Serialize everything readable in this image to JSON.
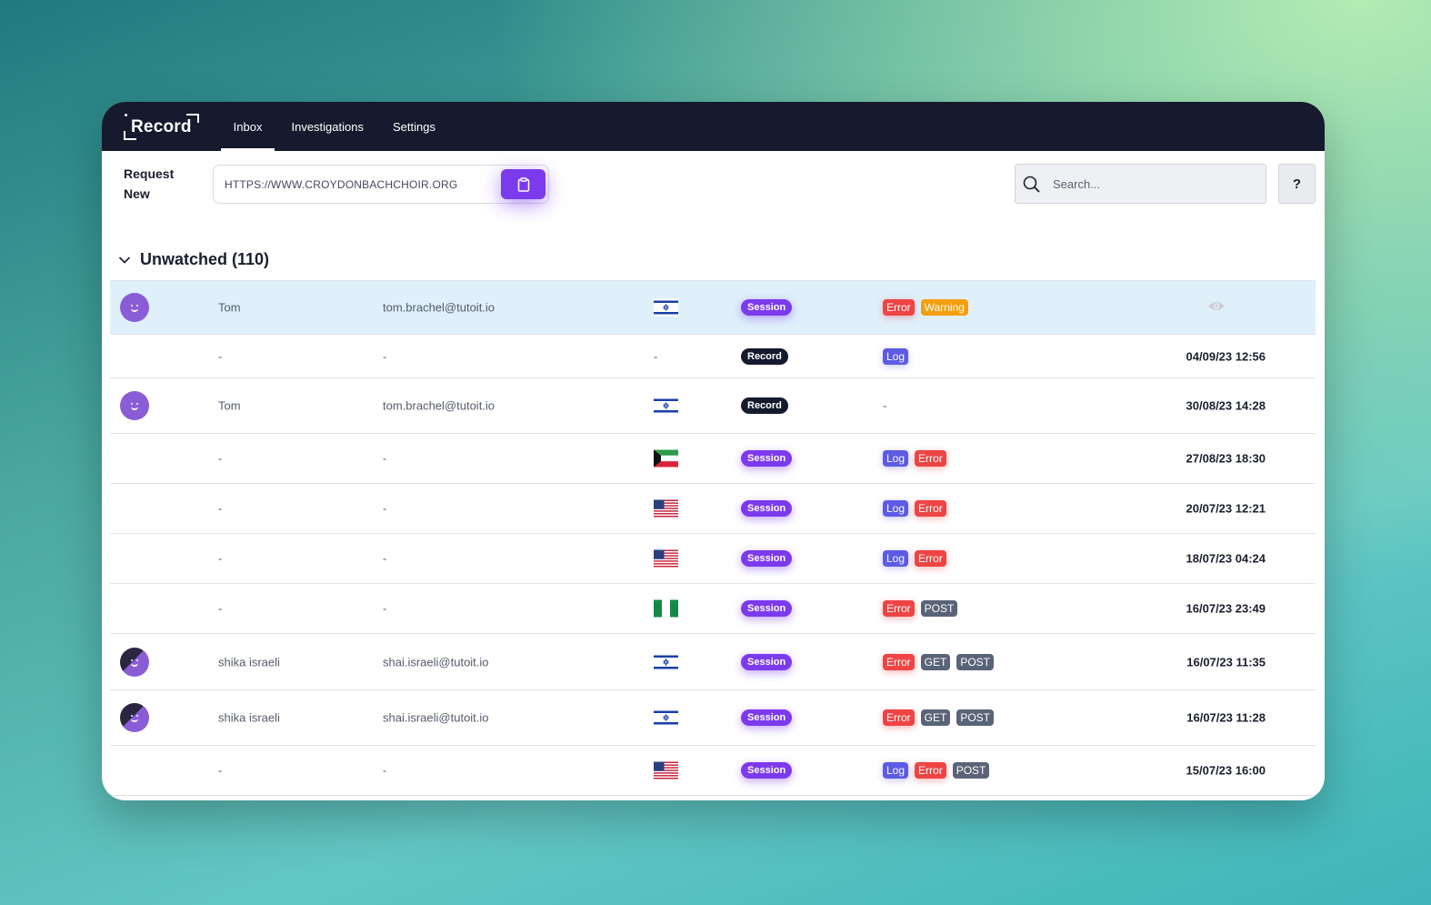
{
  "nav": {
    "logo": "Record",
    "tabs": [
      {
        "label": "Inbox",
        "active": true
      },
      {
        "label": "Investigations",
        "active": false
      },
      {
        "label": "Settings",
        "active": false
      }
    ]
  },
  "toolbar": {
    "request_label_line1": "Request",
    "request_label_line2": "New",
    "url_value": "HTTPS://WWW.CROYDONBACHCHOIR.ORG",
    "search_placeholder": "Search...",
    "help_label": "?"
  },
  "section": {
    "title": "Unwatched (110)"
  },
  "colors": {
    "nav_bg": "#151a2e",
    "accent": "#7c3aed",
    "error": "#ef4444",
    "warning": "#f59e0b",
    "log": "#5b5be6",
    "method": "#5a6478",
    "highlight_row": "#dff0fb"
  },
  "rows": [
    {
      "avatar": "purple-avatar",
      "name": "Tom",
      "email": "tom.brachel@tutoit.io",
      "flag": "israel-flag",
      "type": "Session",
      "tags": [
        "Error",
        "Warning"
      ],
      "date": "",
      "eye": true,
      "highlight": true
    },
    {
      "avatar": "",
      "name": "-",
      "email": "-",
      "flag": "-",
      "type": "Record",
      "tags": [
        "Log"
      ],
      "date": "04/09/23 12:56"
    },
    {
      "avatar": "purple-avatar",
      "name": "Tom",
      "email": "tom.brachel@tutoit.io",
      "flag": "israel-flag",
      "type": "Record",
      "tags_text": "-",
      "tags": [],
      "date": "30/08/23 14:28"
    },
    {
      "avatar": "",
      "name": "-",
      "email": "-",
      "flag": "kuwait-flag",
      "type": "Session",
      "tags": [
        "Log",
        "Error"
      ],
      "date": "27/08/23 18:30"
    },
    {
      "avatar": "",
      "name": "-",
      "email": "-",
      "flag": "usa-flag",
      "type": "Session",
      "tags": [
        "Log",
        "Error"
      ],
      "date": "20/07/23 12:21"
    },
    {
      "avatar": "",
      "name": "-",
      "email": "-",
      "flag": "usa-flag",
      "type": "Session",
      "tags": [
        "Log",
        "Error"
      ],
      "date": "18/07/23 04:24"
    },
    {
      "avatar": "",
      "name": "-",
      "email": "-",
      "flag": "nigeria-flag",
      "type": "Session",
      "tags": [
        "Error",
        "POST"
      ],
      "date": "16/07/23 23:49"
    },
    {
      "avatar": "dark-avatar",
      "name": "shika israeli",
      "email": "shai.israeli@tutoit.io",
      "flag": "israel-flag",
      "type": "Session",
      "tags": [
        "Error",
        "GET",
        "POST"
      ],
      "date": "16/07/23 11:35"
    },
    {
      "avatar": "dark-avatar",
      "name": "shika israeli",
      "email": "shai.israeli@tutoit.io",
      "flag": "israel-flag",
      "type": "Session",
      "tags": [
        "Error",
        "GET",
        "POST"
      ],
      "date": "16/07/23 11:28"
    },
    {
      "avatar": "",
      "name": "-",
      "email": "-",
      "flag": "usa-flag",
      "type": "Session",
      "tags": [
        "Log",
        "Error",
        "POST"
      ],
      "date": "15/07/23 16:00"
    }
  ]
}
